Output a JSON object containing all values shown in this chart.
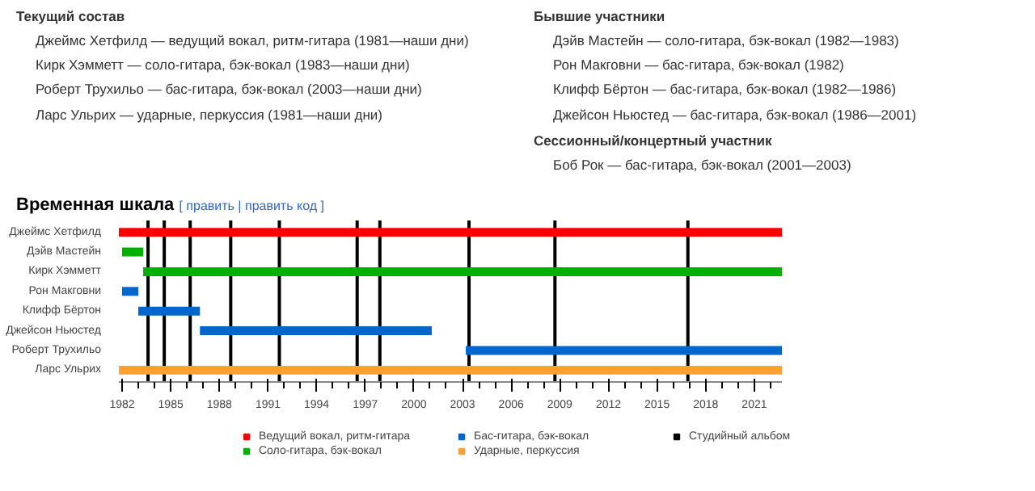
{
  "chart_data": {
    "type": "bar",
    "orientation": "horizontal",
    "title": "Временная шкала",
    "annotations": [
      "Текущий состав",
      "Джеймс Хетфилд — ведущий вокал, ритм-гитара (1981—наши дни)",
      "Кирк Хэмметт — соло-гитара, бэк-вокал (1983—наши дни)",
      "Роберт Трухильо — бас-гитара, бэк-вокал (2003—наши дни)",
      "Ларс Ульрих — ударные, перкуссия (1981—наши дни)",
      "Бывшие участники",
      "Дэйв Мастейн — соло-гитара, бэк-вокал (1982—1983)",
      "Рон Макговни — бас-гитара, бэк-вокал (1982)",
      "Клифф Бёртон — бас-гитара, бэк-вокал (1982—1986)",
      "Джейсон Ньюстед — бас-гитара, бэк-вокал (1986—2001)",
      "Сессионный/концертный участник",
      "Боб Рок — бас-гитара, бэк-вокал (2001—2003)",
      "[ править | править код ]"
    ],
    "categories": [
      "Джеймс Хетфилд",
      "Дэйв Мастейн",
      "Кирк Хэмметт",
      "Рон Макговни",
      "Клифф Бёртон",
      "Джейсон Ньюстед",
      "Роберт Трухильо",
      "Ларс Ульрих"
    ],
    "series": [
      {
        "name": "Ведущий вокал, ритм-гитара",
        "color": "#ff0000",
        "base": [
          1981.8,
          null,
          null,
          null,
          null,
          null,
          null,
          null
        ],
        "values": [
          40.9,
          null,
          null,
          null,
          null,
          null,
          null,
          null
        ]
      },
      {
        "name": "Соло-гитара, бэк-вокал",
        "color": "#00b000",
        "base": [
          null,
          1982.0,
          1983.3,
          null,
          null,
          null,
          null,
          null
        ],
        "values": [
          null,
          1.3,
          39.4,
          null,
          null,
          null,
          null,
          null
        ]
      },
      {
        "name": "Бас-гитара, бэк-вокал",
        "color": "#0066cc",
        "base": [
          null,
          null,
          null,
          1982.0,
          1983.0,
          1986.8,
          2003.2,
          null
        ],
        "values": [
          null,
          null,
          null,
          1.0,
          3.8,
          14.3,
          19.5,
          null
        ]
      },
      {
        "name": "Ударные, перкуссия",
        "color": "#ffa030",
        "base": [
          null,
          null,
          null,
          null,
          null,
          null,
          null,
          1981.8
        ],
        "values": [
          null,
          null,
          null,
          null,
          null,
          null,
          null,
          40.9
        ]
      }
    ],
    "ref_lines": [
      {
        "axis": "x",
        "value": 1983.6,
        "label": "Студийный альбом",
        "color": "#000000"
      },
      {
        "axis": "x",
        "value": 1984.6,
        "label": null,
        "color": "#000000"
      },
      {
        "axis": "x",
        "value": 1986.2,
        "label": null,
        "color": "#000000"
      },
      {
        "axis": "x",
        "value": 1988.7,
        "label": null,
        "color": "#000000"
      },
      {
        "axis": "x",
        "value": 1991.7,
        "label": null,
        "color": "#000000"
      },
      {
        "axis": "x",
        "value": 1996.5,
        "label": null,
        "color": "#000000"
      },
      {
        "axis": "x",
        "value": 1997.9,
        "label": null,
        "color": "#000000"
      },
      {
        "axis": "x",
        "value": 2003.4,
        "label": null,
        "color": "#000000"
      },
      {
        "axis": "x",
        "value": 2008.7,
        "label": null,
        "color": "#000000"
      },
      {
        "axis": "x",
        "value": 2016.9,
        "label": null,
        "color": "#000000"
      }
    ],
    "xlim": [
      1981.8,
      2022.7
    ],
    "xticks": [
      1982,
      1985,
      1988,
      1991,
      1994,
      1997,
      2000,
      2003,
      2006,
      2009,
      2012,
      2015,
      2018,
      2021
    ],
    "grid": false,
    "legend": "bottom"
  }
}
